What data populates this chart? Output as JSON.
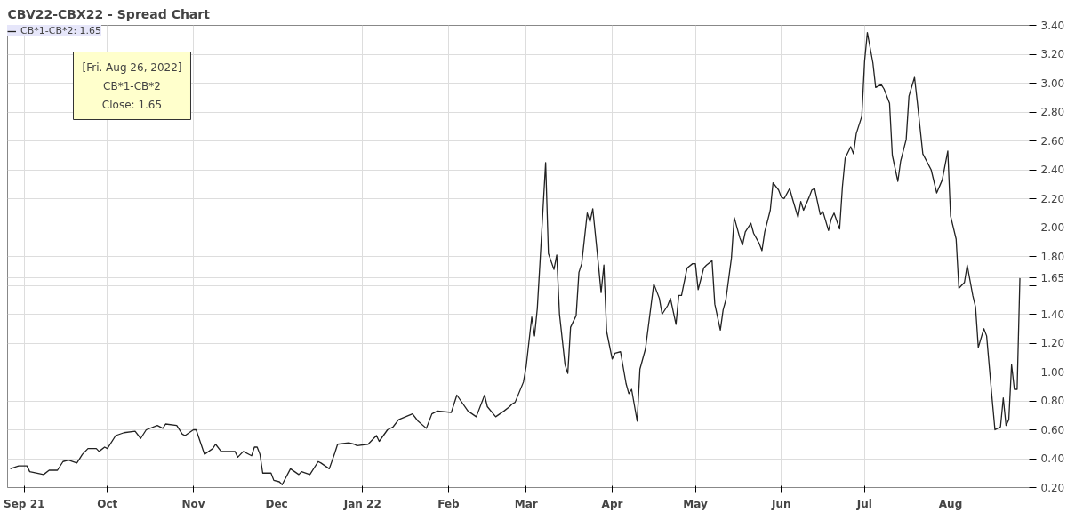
{
  "chart_data": {
    "type": "line",
    "title": "CBV22-CBX22 - Spread Chart",
    "x": [
      "2021-08-27",
      "2021-08-30",
      "2021-09-02",
      "2021-09-03",
      "2021-09-08",
      "2021-09-10",
      "2021-09-13",
      "2021-09-15",
      "2021-09-17",
      "2021-09-20",
      "2021-09-22",
      "2021-09-24",
      "2021-09-27",
      "2021-09-28",
      "2021-09-30",
      "2021-10-01",
      "2021-10-04",
      "2021-10-07",
      "2021-10-11",
      "2021-10-13",
      "2021-10-15",
      "2021-10-19",
      "2021-10-21",
      "2021-10-22",
      "2021-10-26",
      "2021-10-28",
      "2021-10-29",
      "2021-11-01",
      "2021-11-02",
      "2021-11-05",
      "2021-11-08",
      "2021-11-09",
      "2021-11-11",
      "2021-11-16",
      "2021-11-17",
      "2021-11-19",
      "2021-11-22",
      "2021-11-23",
      "2021-11-24",
      "2021-11-25",
      "2021-11-26",
      "2021-11-29",
      "2021-11-30",
      "2021-12-02",
      "2021-12-03",
      "2021-12-06",
      "2021-12-09",
      "2021-12-10",
      "2021-12-13",
      "2021-12-16",
      "2021-12-17",
      "2021-12-20",
      "2021-12-22",
      "2021-12-23",
      "2021-12-27",
      "2021-12-29",
      "2021-12-30",
      "2022-01-03",
      "2022-01-06",
      "2022-01-07",
      "2022-01-10",
      "2022-01-12",
      "2022-01-14",
      "2022-01-19",
      "2022-01-21",
      "2022-01-24",
      "2022-01-26",
      "2022-01-28",
      "2022-02-02",
      "2022-02-04",
      "2022-02-08",
      "2022-02-11",
      "2022-02-14",
      "2022-02-15",
      "2022-02-18",
      "2022-02-21",
      "2022-02-23",
      "2022-02-24",
      "2022-02-25",
      "2022-02-28",
      "2022-03-01",
      "2022-03-03",
      "2022-03-04",
      "2022-03-05",
      "2022-03-06",
      "2022-03-08",
      "2022-03-09",
      "2022-03-11",
      "2022-03-12",
      "2022-03-13",
      "2022-03-15",
      "2022-03-16",
      "2022-03-17",
      "2022-03-19",
      "2022-03-20",
      "2022-03-21",
      "2022-03-23",
      "2022-03-24",
      "2022-03-25",
      "2022-03-27",
      "2022-03-28",
      "2022-03-29",
      "2022-03-30",
      "2022-04-01",
      "2022-04-02",
      "2022-04-04",
      "2022-04-06",
      "2022-04-07",
      "2022-04-08",
      "2022-04-10",
      "2022-04-11",
      "2022-04-13",
      "2022-04-15",
      "2022-04-16",
      "2022-04-18",
      "2022-04-19",
      "2022-04-21",
      "2022-04-22",
      "2022-04-24",
      "2022-04-25",
      "2022-04-26",
      "2022-04-28",
      "2022-04-30",
      "2022-05-01",
      "2022-05-02",
      "2022-05-04",
      "2022-05-05",
      "2022-05-07",
      "2022-05-08",
      "2022-05-10",
      "2022-05-11",
      "2022-05-12",
      "2022-05-14",
      "2022-05-15",
      "2022-05-17",
      "2022-05-18",
      "2022-05-19",
      "2022-05-21",
      "2022-05-22",
      "2022-05-24",
      "2022-05-25",
      "2022-05-26",
      "2022-05-28",
      "2022-05-29",
      "2022-05-31",
      "2022-06-01",
      "2022-06-02",
      "2022-06-04",
      "2022-06-05",
      "2022-06-07",
      "2022-06-08",
      "2022-06-09",
      "2022-06-11",
      "2022-06-12",
      "2022-06-13",
      "2022-06-15",
      "2022-06-16",
      "2022-06-18",
      "2022-06-19",
      "2022-06-20",
      "2022-06-22",
      "2022-06-23",
      "2022-06-24",
      "2022-06-26",
      "2022-06-27",
      "2022-06-28",
      "2022-06-30",
      "2022-07-01",
      "2022-07-02",
      "2022-07-04",
      "2022-07-05",
      "2022-07-07",
      "2022-07-08",
      "2022-07-10",
      "2022-07-11",
      "2022-07-13",
      "2022-07-14",
      "2022-07-16",
      "2022-07-17",
      "2022-07-19",
      "2022-07-20",
      "2022-07-22",
      "2022-07-25",
      "2022-07-27",
      "2022-07-29",
      "2022-07-31",
      "2022-08-01",
      "2022-08-03",
      "2022-08-04",
      "2022-08-06",
      "2022-08-07",
      "2022-08-09",
      "2022-08-10",
      "2022-08-11",
      "2022-08-13",
      "2022-08-14",
      "2022-08-16",
      "2022-08-17",
      "2022-08-19",
      "2022-08-20",
      "2022-08-21",
      "2022-08-22",
      "2022-08-23",
      "2022-08-24",
      "2022-08-25",
      "2022-08-26"
    ],
    "series": [
      {
        "name": "CB*1-CB*2: 1.65",
        "color": "#222222",
        "values": [
          0.33,
          0.35,
          0.35,
          0.31,
          0.29,
          0.32,
          0.32,
          0.38,
          0.39,
          0.37,
          0.43,
          0.47,
          0.47,
          0.45,
          0.48,
          0.47,
          0.56,
          0.58,
          0.59,
          0.54,
          0.6,
          0.63,
          0.61,
          0.64,
          0.63,
          0.57,
          0.56,
          0.6,
          0.6,
          0.43,
          0.47,
          0.5,
          0.45,
          0.45,
          0.41,
          0.45,
          0.42,
          0.48,
          0.48,
          0.43,
          0.3,
          0.3,
          0.25,
          0.24,
          0.22,
          0.33,
          0.29,
          0.31,
          0.29,
          0.38,
          0.37,
          0.33,
          0.44,
          0.5,
          0.51,
          0.5,
          0.49,
          0.5,
          0.56,
          0.52,
          0.6,
          0.62,
          0.67,
          0.71,
          0.66,
          0.61,
          0.71,
          0.73,
          0.72,
          0.84,
          0.73,
          0.69,
          0.84,
          0.76,
          0.69,
          0.73,
          0.76,
          0.78,
          0.79,
          0.93,
          1.04,
          1.38,
          1.25,
          1.44,
          1.77,
          2.45,
          1.82,
          1.71,
          1.81,
          1.4,
          1.05,
          0.99,
          1.31,
          1.39,
          1.69,
          1.75,
          2.1,
          2.04,
          2.13,
          1.75,
          1.55,
          1.74,
          1.28,
          1.09,
          1.13,
          1.14,
          0.92,
          0.85,
          0.88,
          0.66,
          1.02,
          1.16,
          1.46,
          1.61,
          1.51,
          1.4,
          1.46,
          1.51,
          1.33,
          1.53,
          1.53,
          1.72,
          1.75,
          1.75,
          1.57,
          1.72,
          1.74,
          1.77,
          1.47,
          1.29,
          1.43,
          1.5,
          1.79,
          2.07,
          1.93,
          1.88,
          1.97,
          2.03,
          1.96,
          1.89,
          1.84,
          1.97,
          2.12,
          2.31,
          2.26,
          2.21,
          2.2,
          2.27,
          2.2,
          2.07,
          2.18,
          2.12,
          2.21,
          2.26,
          2.27,
          2.09,
          2.11,
          1.98,
          2.06,
          2.1,
          1.99,
          2.28,
          2.48,
          2.56,
          2.51,
          2.65,
          2.77,
          3.15,
          3.35,
          3.14,
          2.97,
          2.99,
          2.96,
          2.86,
          2.5,
          2.32,
          2.46,
          2.61,
          2.91,
          3.04,
          2.87,
          2.51,
          2.4,
          2.24,
          2.33,
          2.53,
          2.08,
          1.92,
          1.58,
          1.62,
          1.74,
          1.53,
          1.45,
          1.17,
          1.3,
          1.25,
          0.81,
          0.6,
          0.62,
          0.82,
          0.63,
          0.67,
          1.05,
          0.88,
          0.88,
          1.65
        ]
      }
    ],
    "xlim": [
      "2021-08-26",
      "2022-08-30"
    ],
    "xticks": [
      {
        "value": "2021-09-01",
        "label": "Sep 21"
      },
      {
        "value": "2021-10-01",
        "label": "Oct"
      },
      {
        "value": "2021-11-01",
        "label": "Nov"
      },
      {
        "value": "2021-12-01",
        "label": "Dec"
      },
      {
        "value": "2022-01-01",
        "label": "Jan 22"
      },
      {
        "value": "2022-02-01",
        "label": "Feb"
      },
      {
        "value": "2022-03-01",
        "label": "Mar"
      },
      {
        "value": "2022-04-01",
        "label": "Apr"
      },
      {
        "value": "2022-05-01",
        "label": "May"
      },
      {
        "value": "2022-06-01",
        "label": "Jun"
      },
      {
        "value": "2022-07-01",
        "label": "Jul"
      },
      {
        "value": "2022-08-01",
        "label": "Aug"
      }
    ],
    "ylim": [
      0.2,
      3.4
    ],
    "yticks": [
      {
        "value": 0.2,
        "label": "0.20"
      },
      {
        "value": 0.4,
        "label": "0.40"
      },
      {
        "value": 0.6,
        "label": "0.60"
      },
      {
        "value": 0.8,
        "label": "0.80"
      },
      {
        "value": 1.0,
        "label": "1.00"
      },
      {
        "value": 1.2,
        "label": "1.20"
      },
      {
        "value": 1.4,
        "label": "1.40"
      },
      {
        "value": 1.6,
        "label": null
      },
      {
        "value": 1.65,
        "label": "1.65"
      },
      {
        "value": 1.8,
        "label": "1.80"
      },
      {
        "value": 2.0,
        "label": "2.00"
      },
      {
        "value": 2.2,
        "label": "2.20"
      },
      {
        "value": 2.4,
        "label": "2.40"
      },
      {
        "value": 2.6,
        "label": "2.60"
      },
      {
        "value": 2.8,
        "label": "2.80"
      },
      {
        "value": 3.0,
        "label": "3.00"
      },
      {
        "value": 3.2,
        "label": "3.20"
      },
      {
        "value": 3.4,
        "label": "3.40"
      }
    ],
    "annotations": [
      "[Fri. Aug 26, 2022]",
      "CB*1-CB*2",
      "Close: 1.65"
    ],
    "grid": true,
    "legend": "top left",
    "marker": "none",
    "line_style": "solid"
  }
}
